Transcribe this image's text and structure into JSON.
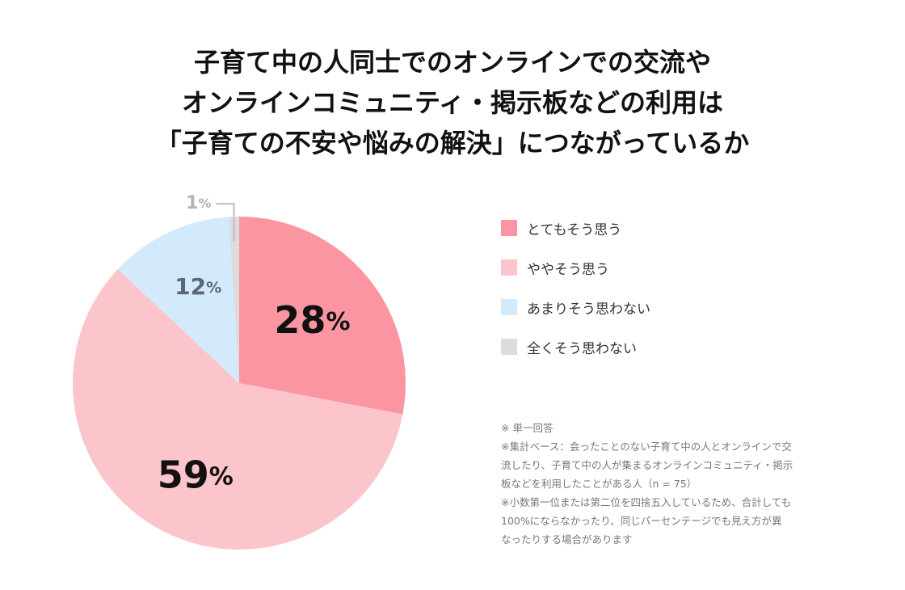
{
  "title": {
    "line1": "子育て中の人同士でのオンラインでの交流や",
    "line2": "オンラインコミュニティ・掲示板などの利用は",
    "line3": "「子育ての不安や悩みの解決」につながっているか"
  },
  "colors": {
    "very_much": "#fc95a2",
    "somewhat": "#fcc5cb",
    "not_much": "#d3eafc",
    "not_at_all": "#dcdcdc"
  },
  "chart_data": {
    "type": "pie",
    "title": "子育て中の人同士でのオンラインでの交流やオンラインコミュニティ・掲示板などの利用は「子育ての不安や悩みの解決」につながっているか",
    "categories": [
      "とてもそう思う",
      "ややそう思う",
      "あまりそう思わない",
      "全くそう思わない"
    ],
    "values": [
      28,
      59,
      12,
      1
    ],
    "labels": [
      "28%",
      "59%",
      "12%",
      "1%"
    ],
    "legend_placement": "right"
  },
  "legend": [
    {
      "label": "とてもそう思う"
    },
    {
      "label": "ややそう思う"
    },
    {
      "label": "あまりそう思わない"
    },
    {
      "label": "全くそう思わない"
    }
  ],
  "notes": [
    "※ 単一回答",
    "※集計ベース：会ったことのない子育て中の人とオンラインで交",
    "流したり、子育て中の人が集まるオンラインコミュニティ・掲示",
    "板などを利用したことがある人（n = 75）",
    "※小数第一位または第二位を四捨五入しているため、合計しても",
    "100%にならなかったり、同じパーセンテージでも見え方が異",
    "なったりする場合があります"
  ]
}
